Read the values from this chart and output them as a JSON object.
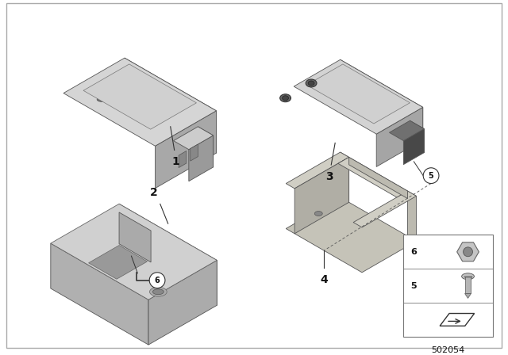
{
  "background_color": "#ffffff",
  "border_color": "#cccccc",
  "part_number": "502054",
  "line_color": "#333333",
  "text_color": "#111111",
  "font_size_label": 10,
  "font_size_partnum": 8,
  "gray_light": "#c8c8c8",
  "gray_mid": "#aaaaaa",
  "gray_dark": "#888888",
  "gray_top": "#d8d8d8",
  "gray_side": "#b0b0b0"
}
